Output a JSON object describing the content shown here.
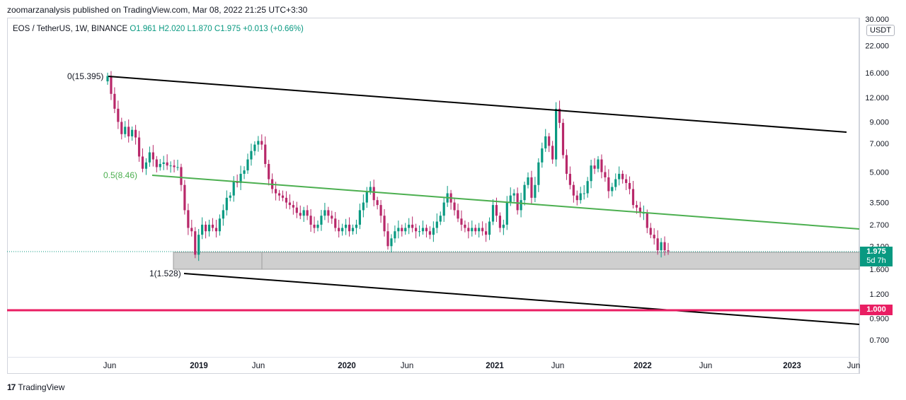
{
  "header": {
    "publisher": "zoomarzanalysis published on TradingView.com, Mar 08, 2022 21:25 UTC+3:30"
  },
  "legend": {
    "symbol": "EOS / TetherUS, 1W, BINANCE",
    "ohlc": "O1.961  H2.020  L1.870  C1.975  +0.013 (+0.66%)"
  },
  "unit_badge": "USDT",
  "price_tag": {
    "price": "1.975",
    "countdown": "5d 7h",
    "level": "1.000"
  },
  "footer": {
    "brand": "TradingView",
    "logo": "17"
  },
  "colors": {
    "up": "#089981",
    "down": "#b8286a",
    "level": "#e91e63",
    "fib_mid": "#4caf50",
    "channel": "#000000",
    "zone": "#d1d4dc"
  },
  "chart_data": {
    "type": "candlestick",
    "symbol": "EOS/USDT",
    "timeframe": "1W",
    "yscale": "log",
    "ylim": [
      0.6,
      30
    ],
    "y_ticks": [
      "30.000",
      "22.000",
      "16.000",
      "12.000",
      "9.000",
      "7.000",
      "5.000",
      "3.500",
      "2.700",
      "2.100",
      "1.600",
      "1.200",
      "0.900",
      "0.700"
    ],
    "x_ticks": [
      "Jun",
      "2019",
      "Jun",
      "2020",
      "Jun",
      "2021",
      "Jun",
      "2022",
      "Jun",
      "2023",
      "Jun"
    ],
    "annotations": {
      "fib_0": "0(15.395)",
      "fib_05": "0.5(8.46)",
      "fib_1": "1(1.528)"
    },
    "levels": [
      {
        "name": "horizontal",
        "value": 1.0
      }
    ],
    "support_zone": [
      1.6,
      1.95
    ],
    "last_close": 1.975,
    "weekly_closes": [
      15.4,
      12.5,
      10.5,
      9,
      7.8,
      8.5,
      7.6,
      8.2,
      7.5,
      6,
      5.2,
      5.6,
      6.3,
      5.8,
      5.3,
      5.5,
      5.6,
      5.4,
      5.4,
      5.3,
      5.3,
      4.3,
      3.2,
      2.6,
      2.5,
      1.9,
      2.4,
      2.7,
      2.5,
      2.7,
      2.6,
      2.5,
      2.9,
      3.2,
      3.7,
      3.8,
      4.5,
      4.4,
      4.9,
      5.1,
      5.8,
      6.4,
      6.9,
      7.2,
      6.9,
      5.5,
      4.6,
      4.1,
      3.9,
      3.8,
      3.7,
      3.5,
      3.4,
      3.3,
      3.1,
      3.0,
      3.2,
      3.0,
      2.7,
      2.6,
      2.7,
      3.0,
      3.2,
      3.0,
      2.9,
      2.6,
      2.5,
      2.6,
      2.7,
      2.5,
      2.6,
      2.7,
      3.2,
      3.5,
      4.0,
      4.2,
      3.6,
      3.4,
      3.0,
      2.5,
      2.1,
      2.3,
      2.5,
      2.6,
      2.5,
      2.6,
      2.7,
      2.6,
      2.5,
      2.5,
      2.6,
      2.5,
      2.4,
      2.6,
      2.8,
      3.0,
      3.5,
      3.9,
      3.5,
      3.2,
      2.9,
      2.7,
      2.6,
      2.5,
      2.6,
      2.5,
      2.6,
      2.5,
      2.4,
      2.8,
      3.4,
      3.0,
      2.6,
      2.7,
      3.5,
      3.8,
      3.9,
      3.2,
      3.6,
      4.3,
      4.7,
      3.7,
      4.3,
      5.6,
      6.6,
      7.6,
      6.8,
      5.8,
      10.5,
      8.9,
      6.1,
      4.9,
      4.3,
      3.8,
      3.6,
      3.9,
      3.9,
      4.5,
      5.4,
      5.2,
      5.8,
      5.0,
      4.7,
      4.0,
      4.2,
      4.6,
      4.9,
      4.6,
      4.4,
      4.1,
      3.4,
      3.3,
      3.1,
      3.1,
      2.6,
      2.4,
      2.3,
      2.0,
      2.2,
      2.0,
      1.975
    ]
  }
}
